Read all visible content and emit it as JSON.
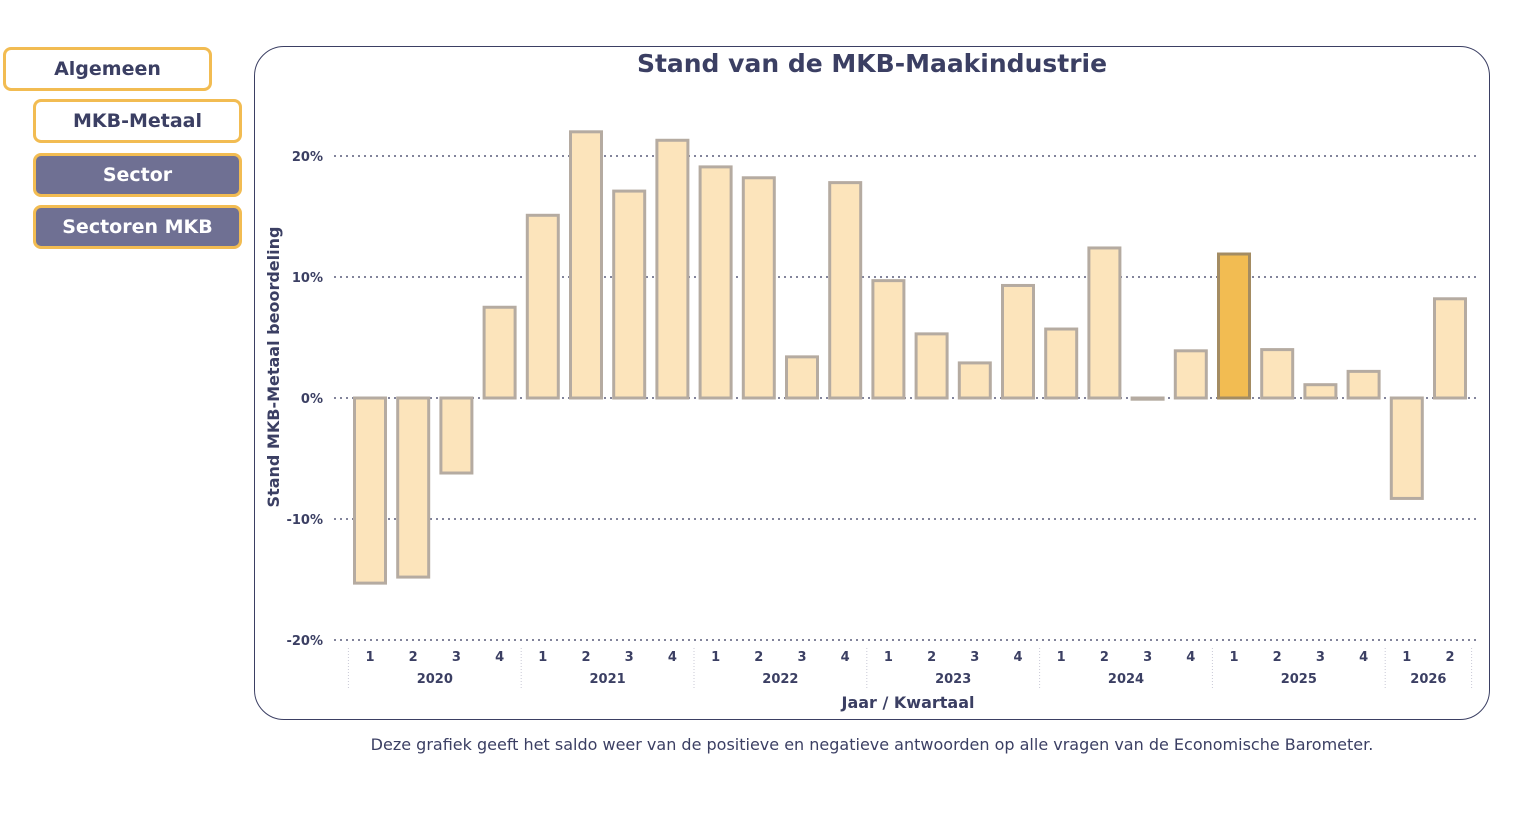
{
  "nav": {
    "algemeen": "Algemeen",
    "mkb_metaal": "MKB-Metaal",
    "sector": "Sector",
    "sectoren_mkb": "Sectoren MKB"
  },
  "chart_data": {
    "type": "bar",
    "title": "Stand van de MKB-Maakindustrie",
    "xlabel": "Jaar / Kwartaal",
    "ylabel": "Stand MKB-Metaal beoordeling",
    "ylim": [
      -20,
      20
    ],
    "yticks": [
      "20%",
      "10%",
      "0%",
      "-10%",
      "-20%"
    ],
    "grid": true,
    "years": [
      "2020",
      "2021",
      "2022",
      "2023",
      "2024",
      "2025",
      "2026"
    ],
    "categories": [
      {
        "year": "2020",
        "quarter": "1"
      },
      {
        "year": "2020",
        "quarter": "2"
      },
      {
        "year": "2020",
        "quarter": "3"
      },
      {
        "year": "2020",
        "quarter": "4"
      },
      {
        "year": "2021",
        "quarter": "1"
      },
      {
        "year": "2021",
        "quarter": "2"
      },
      {
        "year": "2021",
        "quarter": "3"
      },
      {
        "year": "2021",
        "quarter": "4"
      },
      {
        "year": "2022",
        "quarter": "1"
      },
      {
        "year": "2022",
        "quarter": "2"
      },
      {
        "year": "2022",
        "quarter": "3"
      },
      {
        "year": "2022",
        "quarter": "4"
      },
      {
        "year": "2023",
        "quarter": "1"
      },
      {
        "year": "2023",
        "quarter": "2"
      },
      {
        "year": "2023",
        "quarter": "3"
      },
      {
        "year": "2023",
        "quarter": "4"
      },
      {
        "year": "2024",
        "quarter": "1"
      },
      {
        "year": "2024",
        "quarter": "2"
      },
      {
        "year": "2024",
        "quarter": "3"
      },
      {
        "year": "2024",
        "quarter": "4"
      },
      {
        "year": "2025",
        "quarter": "1"
      },
      {
        "year": "2025",
        "quarter": "2"
      },
      {
        "year": "2025",
        "quarter": "3"
      },
      {
        "year": "2025",
        "quarter": "4"
      },
      {
        "year": "2026",
        "quarter": "1"
      },
      {
        "year": "2026",
        "quarter": "2"
      }
    ],
    "values": [
      -15.3,
      -14.8,
      -6.2,
      7.5,
      15.1,
      22.0,
      17.1,
      21.3,
      19.1,
      18.2,
      3.4,
      17.8,
      9.7,
      5.3,
      2.9,
      9.3,
      5.7,
      12.4,
      -0.1,
      3.9,
      11.9,
      4.0,
      1.1,
      2.2,
      -8.3,
      8.2
    ],
    "highlight_index": 20,
    "colors": {
      "bar_fill": "#fce4bb",
      "bar_stroke": "#b5aba1",
      "highlight_fill": "#f2bc52",
      "highlight_stroke": "#a48c62",
      "text": "#3b3f63",
      "grid": "#3b3f63"
    }
  },
  "caption": "Deze grafiek geeft het saldo weer van de positieve en negatieve antwoorden op alle vragen van de Economische Barometer."
}
